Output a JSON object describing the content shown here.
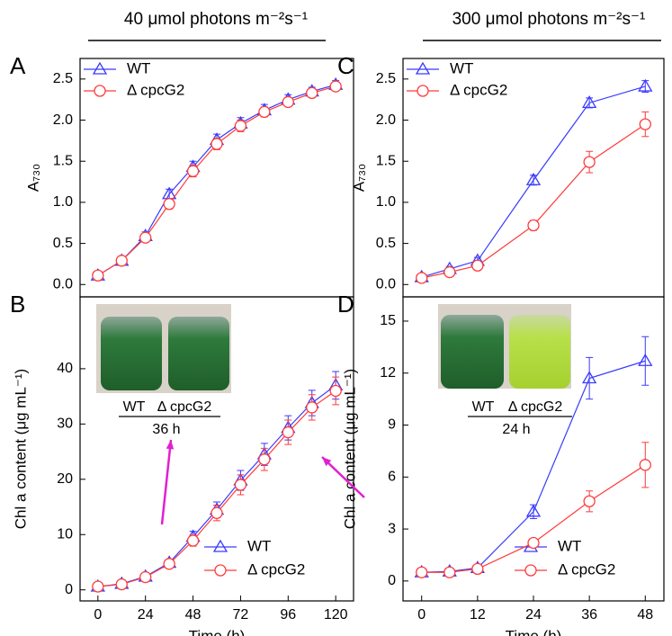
{
  "chart_data": [
    {
      "type": "line",
      "panel": "A",
      "title": "40 μmol photons m⁻²s⁻¹",
      "ylabel": "A₇₃₀",
      "legend": "upper left",
      "x": [
        0,
        12,
        24,
        36,
        48,
        60,
        72,
        84,
        96,
        108,
        120
      ],
      "xlim": [
        -9,
        129
      ],
      "ylim": [
        -0.15,
        2.75
      ],
      "yticks": [
        {
          "value": 0,
          "label": "0.0"
        },
        {
          "value": 0.5,
          "label": "0.5"
        },
        {
          "value": 1,
          "label": "1.0"
        },
        {
          "value": 1.5,
          "label": "1.5"
        },
        {
          "value": 2,
          "label": "2.0"
        },
        {
          "value": 2.5,
          "label": "2.5"
        }
      ],
      "series": [
        {
          "name": "WT",
          "color": "#3a3aff",
          "marker": "triangle",
          "values": [
            0.11,
            0.29,
            0.59,
            1.1,
            1.43,
            1.76,
            1.96,
            2.12,
            2.25,
            2.35,
            2.43
          ],
          "errors": [
            0.02,
            0.02,
            0.05,
            0.06,
            0.07,
            0.07,
            0.07,
            0.07,
            0.06,
            0.05,
            0.05
          ]
        },
        {
          "name": "Δ cpcG2",
          "color": "#ff3b3b",
          "marker": "circle",
          "values": [
            0.11,
            0.29,
            0.57,
            0.98,
            1.38,
            1.71,
            1.93,
            2.1,
            2.22,
            2.33,
            2.41
          ],
          "errors": [
            0.02,
            0.02,
            0.04,
            0.06,
            0.07,
            0.07,
            0.07,
            0.06,
            0.05,
            0.05,
            0.05
          ]
        }
      ]
    },
    {
      "type": "line",
      "panel": "B",
      "ylabel": "Chl a content (μg mL⁻¹)",
      "xlabel": "Time (h)",
      "legend": "lower right",
      "annotations": [
        "WT",
        "Δ cpcG2",
        "36 h"
      ],
      "x": [
        0,
        12,
        24,
        36,
        48,
        60,
        72,
        84,
        96,
        108,
        120
      ],
      "xlim": [
        -9,
        129
      ],
      "ylim": [
        -2,
        53
      ],
      "xticks": [
        0,
        24,
        48,
        72,
        96,
        120
      ],
      "yticks": [
        0,
        10,
        20,
        30,
        40
      ],
      "series": [
        {
          "name": "WT",
          "color": "#3a3aff",
          "marker": "triangle",
          "values": [
            0.6,
            1.1,
            2.4,
            4.9,
            9.6,
            14.5,
            19.8,
            24.5,
            29.3,
            33.8,
            37.0
          ],
          "errors": [
            0.2,
            0.2,
            0.3,
            0.5,
            1.0,
            1.4,
            1.8,
            2.0,
            2.2,
            2.3,
            2.5
          ]
        },
        {
          "name": "Δ cpcG2",
          "color": "#ff3b3b",
          "marker": "circle",
          "values": [
            0.6,
            1.0,
            2.3,
            4.7,
            8.9,
            13.9,
            19.0,
            23.6,
            28.5,
            33.0,
            36.0
          ],
          "errors": [
            0.2,
            0.2,
            0.3,
            0.5,
            1.0,
            1.4,
            1.8,
            2.0,
            2.2,
            2.3,
            2.5
          ]
        }
      ]
    },
    {
      "type": "line",
      "panel": "C",
      "title": "300 μmol photons m⁻²s⁻¹",
      "ylabel": "A₇₃₀",
      "legend": "upper left",
      "x": [
        0,
        6,
        12,
        24,
        36,
        48
      ],
      "xlim": [
        -4,
        52
      ],
      "ylim": [
        -0.15,
        2.75
      ],
      "yticks": [
        {
          "value": 0,
          "label": "0.0"
        },
        {
          "value": 0.5,
          "label": "0.5"
        },
        {
          "value": 1,
          "label": "1.0"
        },
        {
          "value": 1.5,
          "label": "1.5"
        },
        {
          "value": 2,
          "label": "2.0"
        },
        {
          "value": 2.5,
          "label": "2.5"
        }
      ],
      "series": [
        {
          "name": "WT",
          "color": "#3a3aff",
          "marker": "triangle",
          "values": [
            0.09,
            0.19,
            0.29,
            1.27,
            2.21,
            2.41
          ],
          "errors": [
            0.03,
            0.03,
            0.04,
            0.06,
            0.06,
            0.07
          ]
        },
        {
          "name": "Δ cpcG2",
          "color": "#ff3b3b",
          "marker": "circle",
          "values": [
            0.08,
            0.15,
            0.23,
            0.72,
            1.49,
            1.95
          ],
          "errors": [
            0.03,
            0.03,
            0.03,
            0.06,
            0.13,
            0.15
          ]
        }
      ]
    },
    {
      "type": "line",
      "panel": "D",
      "ylabel": "Chl a content (μg mL⁻¹)",
      "xlabel": "Time (h)",
      "legend": "lower right",
      "annotations": [
        "WT",
        "Δ cpcG2",
        "24 h"
      ],
      "x": [
        0,
        6,
        12,
        24,
        36,
        48
      ],
      "xlim": [
        -4,
        52
      ],
      "ylim": [
        -1.15,
        16.4
      ],
      "xticks": [
        0,
        12,
        24,
        36,
        48
      ],
      "yticks": [
        0,
        3,
        6,
        9,
        12,
        15
      ],
      "series": [
        {
          "name": "WT",
          "color": "#3a3aff",
          "marker": "triangle",
          "values": [
            0.5,
            0.55,
            0.75,
            4.0,
            11.7,
            12.7
          ],
          "errors": [
            0.1,
            0.1,
            0.1,
            0.4,
            1.2,
            1.4
          ]
        },
        {
          "name": "Δ cpcG2",
          "color": "#ff3b3b",
          "marker": "circle",
          "values": [
            0.5,
            0.5,
            0.7,
            2.2,
            4.6,
            6.7
          ],
          "errors": [
            0.1,
            0.1,
            0.1,
            0.15,
            0.6,
            1.3
          ]
        }
      ]
    }
  ]
}
